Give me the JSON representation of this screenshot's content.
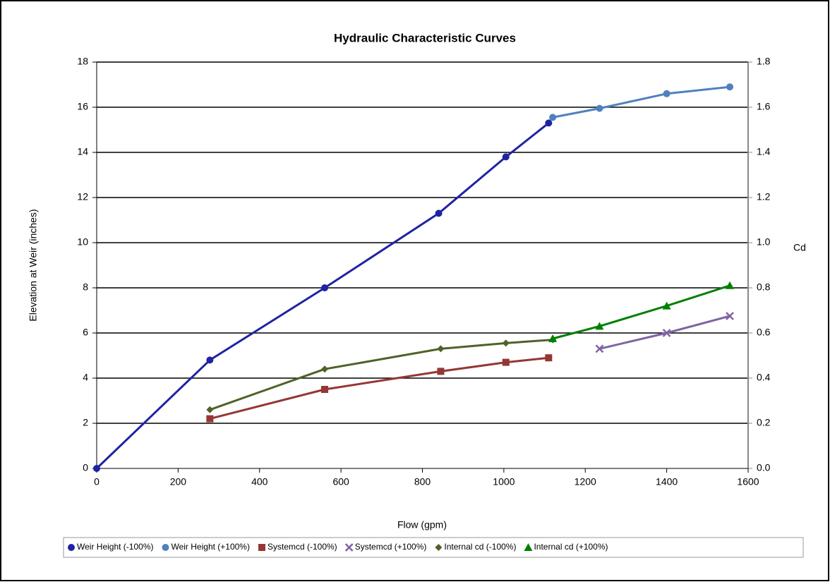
{
  "chart_data": {
    "type": "line",
    "title": "Hydraulic Characteristic  Curves",
    "xlabel": "Flow (gpm)",
    "ylabel": "Elevation at Weir (inches)",
    "y2label": "Cd",
    "xlim": [
      0,
      1600
    ],
    "xticks": [
      0,
      200,
      400,
      600,
      800,
      1000,
      1200,
      1400,
      1600
    ],
    "ylim": [
      0,
      18
    ],
    "yticks": [
      0,
      2,
      4,
      6,
      8,
      10,
      12,
      14,
      16,
      18
    ],
    "y2lim": [
      0,
      1.8
    ],
    "y2ticks": [
      {
        "value": 0,
        "label": "0.0"
      },
      0.2,
      0.4,
      0.6,
      0.8,
      {
        "value": 1,
        "label": "1.0"
      },
      1.2,
      1.4,
      1.6,
      1.8
    ],
    "grid": true,
    "legend": "bottom",
    "series": [
      {
        "name": "Weir Height  (-100%)",
        "color": "#1f23a3",
        "marker": "circle",
        "x": [
          0,
          278,
          560,
          840,
          1005,
          1110
        ],
        "values": [
          0,
          4.8,
          8.0,
          11.3,
          13.8,
          15.3
        ]
      },
      {
        "name": "Weir Height (+100%)",
        "color": "#4f81bd",
        "marker": "circle",
        "x": [
          1120,
          1235,
          1400,
          1555
        ],
        "values": [
          15.55,
          15.95,
          16.6,
          16.9
        ]
      },
      {
        "name": "Systemcd (-100%)",
        "color": "#953735",
        "marker": "square",
        "axis": "y2",
        "x": [
          278,
          560,
          845,
          1005,
          1110
        ],
        "values": [
          0.22,
          0.35,
          0.43,
          0.47,
          0.49
        ]
      },
      {
        "name": "Systemcd (+100%)",
        "color": "#8064a2",
        "marker": "x",
        "axis": "y2",
        "x": [
          1235,
          1400,
          1555
        ],
        "values": [
          0.53,
          0.6,
          0.675
        ]
      },
      {
        "name": "Internal cd (-100%)",
        "color": "#4f6228",
        "marker": "diamond",
        "axis": "y2",
        "x": [
          278,
          560,
          845,
          1005,
          1120
        ],
        "values": [
          0.26,
          0.44,
          0.53,
          0.555,
          0.57
        ]
      },
      {
        "name": "Internal cd (+100%)",
        "color": "#008000",
        "marker": "triangle",
        "axis": "y2",
        "x": [
          1120,
          1235,
          1400,
          1555
        ],
        "values": [
          0.575,
          0.63,
          0.72,
          0.81
        ]
      }
    ]
  }
}
